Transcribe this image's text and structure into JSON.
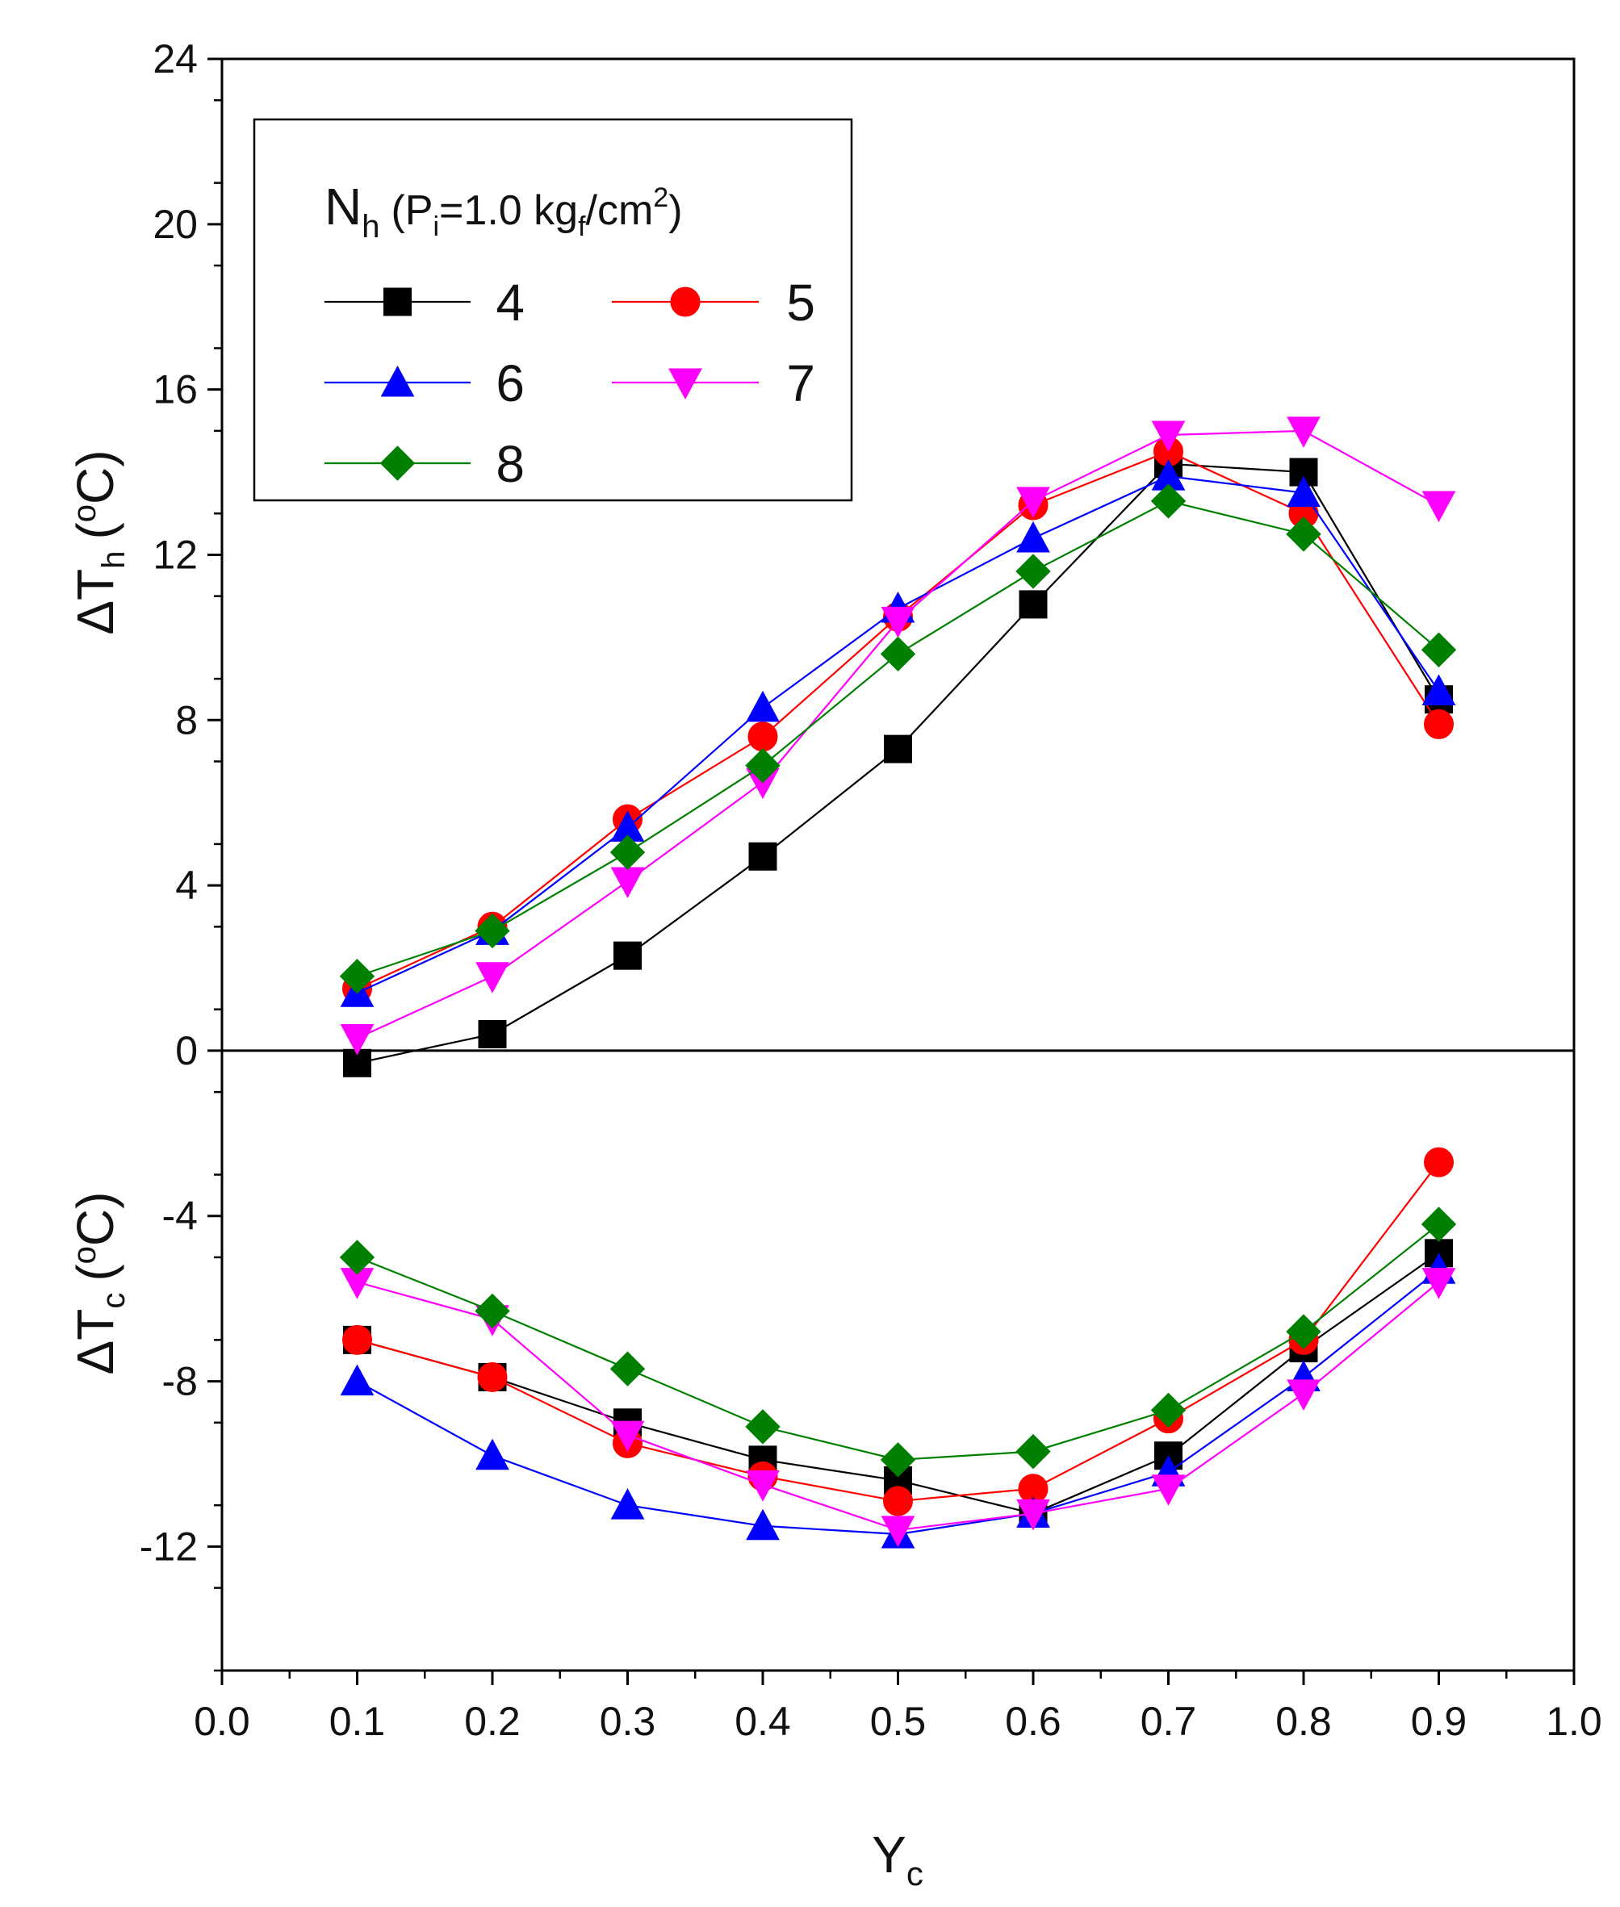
{
  "chart_data": {
    "type": "scatter",
    "mode": "lines+markers",
    "xlabel": "Y",
    "xlabel_sub": "c",
    "ylabel_upper": "ΔT",
    "ylabel_upper_sub": "h",
    "ylabel_lower": "ΔT",
    "ylabel_lower_sub": "c",
    "ylabel_unit_open": "(",
    "ylabel_unit_sup": "o",
    "ylabel_unit_close": "C)",
    "xlim": [
      0.0,
      1.0
    ],
    "ylim": [
      -15,
      24
    ],
    "xticks": [
      "0.0",
      "0.1",
      "0.2",
      "0.3",
      "0.4",
      "0.5",
      "0.6",
      "0.7",
      "0.8",
      "0.9",
      "1.0"
    ],
    "yticks": [
      "24",
      "20",
      "16",
      "12",
      "8",
      "4",
      "0",
      "-4",
      "-8",
      "-12"
    ],
    "ytick_values": [
      24,
      20,
      16,
      12,
      8,
      4,
      0,
      -4,
      -8,
      -12
    ],
    "zero_line": true,
    "legend": {
      "position": "top-left",
      "title_main": "N",
      "title_sub": "h",
      "title_open": "(P",
      "title_p_sub": "i",
      "title_mid": "=1.0 kg",
      "title_kg_sub": "f",
      "title_unit": "/cm",
      "title_sup": "2",
      "title_close": ")"
    },
    "x": [
      0.1,
      0.2,
      0.3,
      0.4,
      0.5,
      0.6,
      0.7,
      0.8,
      0.9
    ],
    "series": [
      {
        "name": "4",
        "color": "#000000",
        "marker": "square",
        "hot": [
          -0.3,
          0.4,
          2.3,
          4.7,
          7.3,
          10.8,
          14.2,
          14.0,
          8.5
        ],
        "cold": [
          -7.0,
          -7.9,
          -9.0,
          -9.9,
          -10.4,
          -11.2,
          -9.8,
          -7.2,
          -4.9
        ]
      },
      {
        "name": "5",
        "color": "#ff0000",
        "marker": "circle",
        "hot": [
          1.5,
          3.0,
          5.6,
          7.6,
          10.5,
          13.2,
          14.5,
          13.0,
          7.9
        ],
        "cold": [
          -7.0,
          -7.9,
          -9.5,
          -10.3,
          -10.9,
          -10.6,
          -8.9,
          -7.0,
          -2.7
        ]
      },
      {
        "name": "6",
        "color": "#0000ff",
        "marker": "triangle-up",
        "hot": [
          1.4,
          2.9,
          5.4,
          8.3,
          10.7,
          12.4,
          13.9,
          13.5,
          8.7
        ],
        "cold": [
          -8.0,
          -9.8,
          -11.0,
          -11.5,
          -11.7,
          -11.2,
          -10.2,
          -7.9,
          -5.3
        ]
      },
      {
        "name": "7",
        "color": "#ff00ff",
        "marker": "triangle-down",
        "hot": [
          0.3,
          1.8,
          4.1,
          6.5,
          10.4,
          13.3,
          14.9,
          15.0,
          13.2
        ],
        "cold": [
          -5.6,
          -6.5,
          -9.3,
          -10.5,
          -11.6,
          -11.2,
          -10.6,
          -8.3,
          -5.6
        ]
      },
      {
        "name": "8",
        "color": "#008000",
        "marker": "diamond",
        "hot": [
          1.8,
          2.9,
          4.8,
          6.9,
          9.6,
          11.6,
          13.3,
          12.5,
          9.7
        ],
        "cold": [
          -5.0,
          -6.3,
          -7.7,
          -9.1,
          -9.9,
          -9.7,
          -8.7,
          -6.8,
          -4.2
        ]
      }
    ]
  }
}
